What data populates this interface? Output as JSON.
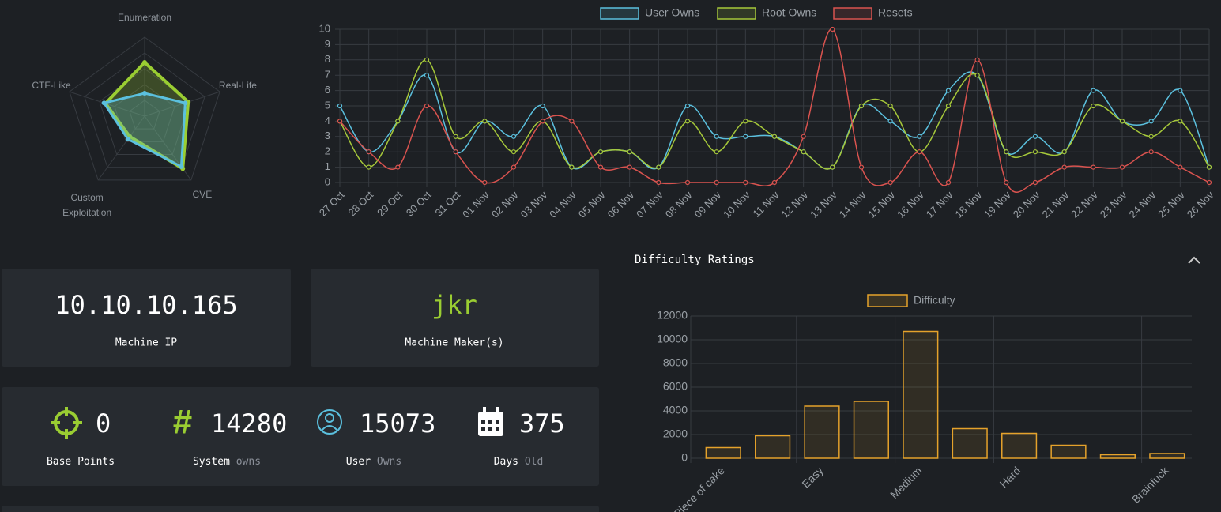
{
  "chart_data": [
    {
      "type": "radar",
      "labels": [
        "Enumeration",
        "Real-Life",
        "CVE",
        "Custom Exploitation",
        "CTF-Like"
      ],
      "rlim": [
        0,
        100
      ],
      "rticks": [
        20,
        40,
        60,
        80,
        100
      ],
      "series": [
        {
          "color": "#9acd32",
          "values": [
            68,
            58,
            82,
            32,
            52
          ]
        },
        {
          "color": "#5bc0de",
          "values": [
            29,
            54,
            79,
            36,
            54
          ]
        }
      ]
    },
    {
      "type": "line",
      "categories": [
        "27 Oct",
        "28 Oct",
        "29 Oct",
        "30 Oct",
        "31 Oct",
        "01 Nov",
        "02 Nov",
        "03 Nov",
        "04 Nov",
        "05 Nov",
        "06 Nov",
        "07 Nov",
        "08 Nov",
        "09 Nov",
        "10 Nov",
        "11 Nov",
        "12 Nov",
        "13 Nov",
        "14 Nov",
        "15 Nov",
        "16 Nov",
        "17 Nov",
        "18 Nov",
        "19 Nov",
        "20 Nov",
        "21 Nov",
        "22 Nov",
        "23 Nov",
        "24 Nov",
        "25 Nov",
        "26 Nov"
      ],
      "series": [
        {
          "name": "User Owns",
          "color": "#5bc0de",
          "values": [
            5,
            2,
            4,
            7,
            2,
            4,
            3,
            5,
            1,
            2,
            2,
            1,
            5,
            3,
            3,
            3,
            2,
            1,
            5,
            4,
            3,
            6,
            7,
            2,
            3,
            2,
            6,
            4,
            4,
            6,
            1
          ]
        },
        {
          "name": "Root Owns",
          "color": "#a6c83a",
          "values": [
            4,
            1,
            4,
            8,
            3,
            4,
            2,
            4,
            1,
            2,
            2,
            1,
            4,
            2,
            4,
            3,
            2,
            1,
            5,
            5,
            2,
            5,
            7,
            2,
            2,
            2,
            5,
            4,
            3,
            4,
            1
          ]
        },
        {
          "name": "Resets",
          "color": "#d9534f",
          "values": [
            4,
            2,
            1,
            5,
            2,
            0,
            1,
            4,
            4,
            1,
            1,
            0,
            0,
            0,
            0,
            0,
            3,
            10,
            1,
            0,
            2,
            0,
            8,
            0,
            0,
            1,
            1,
            1,
            2,
            1,
            0
          ]
        }
      ],
      "ylim": [
        0,
        10
      ],
      "yticks": [
        0,
        1,
        2,
        3,
        4,
        5,
        6,
        7,
        8,
        9,
        10
      ],
      "grid": true,
      "legend": "top"
    },
    {
      "type": "bar",
      "title": "Difficulty Ratings",
      "categories": [
        "Piece of cake",
        null,
        "Easy",
        null,
        "Medium",
        null,
        "Hard",
        null,
        null,
        "Brainfuck"
      ],
      "series": [
        {
          "name": "Difficulty",
          "color": "#e5a22b",
          "values": [
            900,
            1900,
            4400,
            4800,
            10700,
            2500,
            2100,
            1100,
            300,
            400
          ]
        }
      ],
      "ylim": [
        0,
        12000
      ],
      "yticks": [
        0,
        2000,
        4000,
        6000,
        8000,
        10000,
        12000
      ],
      "grid": true,
      "legend": "top"
    }
  ],
  "cards": {
    "machine_ip": {
      "value": "10.10.10.165",
      "label": "Machine IP"
    },
    "machine_maker": {
      "value": "jkr",
      "label": "Machine Maker(s)"
    },
    "stats": [
      {
        "value": 0,
        "label": "Base Points"
      },
      {
        "value": 14280,
        "label": "System",
        "sublabel": "owns"
      },
      {
        "value": 15073,
        "label": "User",
        "sublabel": "Owns"
      },
      {
        "value": 375,
        "label": "Days",
        "sublabel": "Old"
      }
    ]
  }
}
